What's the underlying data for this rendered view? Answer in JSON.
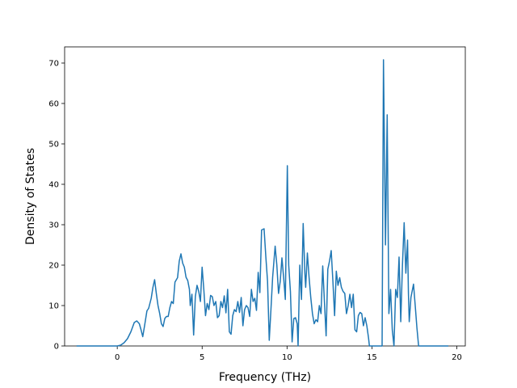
{
  "chart_data": {
    "type": "line",
    "title": "",
    "xlabel": "Frequency (THz)",
    "ylabel": "Density of States",
    "xlim": [
      -3.1,
      20.5
    ],
    "ylim": [
      0,
      74
    ],
    "xticks": [
      0,
      5,
      10,
      15,
      20
    ],
    "yticks": [
      0,
      10,
      20,
      30,
      40,
      50,
      60,
      70
    ],
    "grid": false,
    "legend": "none",
    "series": [
      {
        "color": "#1f77b4",
        "points": [
          [
            -2.4,
            0
          ],
          [
            -1.0,
            0
          ],
          [
            0.0,
            0
          ],
          [
            0.2,
            0.2
          ],
          [
            0.4,
            0.8
          ],
          [
            0.6,
            1.8
          ],
          [
            0.8,
            3.5
          ],
          [
            1.0,
            5.8
          ],
          [
            1.15,
            6.2
          ],
          [
            1.3,
            5.5
          ],
          [
            1.4,
            4.0
          ],
          [
            1.5,
            2.3
          ],
          [
            1.6,
            4.8
          ],
          [
            1.75,
            8.7
          ],
          [
            1.85,
            9.3
          ],
          [
            2.0,
            11.8
          ],
          [
            2.1,
            14.5
          ],
          [
            2.2,
            16.4
          ],
          [
            2.3,
            13.0
          ],
          [
            2.4,
            10.0
          ],
          [
            2.5,
            8.0
          ],
          [
            2.6,
            5.5
          ],
          [
            2.7,
            4.8
          ],
          [
            2.8,
            6.8
          ],
          [
            2.9,
            7.3
          ],
          [
            3.0,
            7.3
          ],
          [
            3.1,
            9.5
          ],
          [
            3.2,
            11.0
          ],
          [
            3.3,
            10.5
          ],
          [
            3.4,
            15.8
          ],
          [
            3.55,
            16.9
          ],
          [
            3.65,
            21.0
          ],
          [
            3.75,
            22.8
          ],
          [
            3.85,
            20.5
          ],
          [
            3.95,
            19.5
          ],
          [
            4.05,
            17.0
          ],
          [
            4.15,
            16.2
          ],
          [
            4.25,
            14.0
          ],
          [
            4.3,
            10.0
          ],
          [
            4.4,
            12.8
          ],
          [
            4.5,
            2.7
          ],
          [
            4.6,
            12.2
          ],
          [
            4.7,
            15.0
          ],
          [
            4.8,
            13.5
          ],
          [
            4.9,
            11.0
          ],
          [
            5.0,
            19.5
          ],
          [
            5.1,
            14.0
          ],
          [
            5.2,
            7.5
          ],
          [
            5.3,
            10.5
          ],
          [
            5.4,
            9.0
          ],
          [
            5.5,
            12.5
          ],
          [
            5.6,
            12.2
          ],
          [
            5.7,
            10.0
          ],
          [
            5.8,
            11.0
          ],
          [
            5.9,
            7.0
          ],
          [
            6.0,
            7.5
          ],
          [
            6.1,
            11.0
          ],
          [
            6.2,
            9.5
          ],
          [
            6.3,
            12.4
          ],
          [
            6.4,
            8.2
          ],
          [
            6.5,
            14.0
          ],
          [
            6.6,
            3.5
          ],
          [
            6.7,
            2.9
          ],
          [
            6.8,
            7.5
          ],
          [
            6.9,
            9.0
          ],
          [
            7.0,
            8.5
          ],
          [
            7.1,
            11.0
          ],
          [
            7.2,
            8.3
          ],
          [
            7.3,
            12.0
          ],
          [
            7.4,
            5.0
          ],
          [
            7.5,
            9.0
          ],
          [
            7.6,
            10.0
          ],
          [
            7.7,
            9.5
          ],
          [
            7.8,
            7.3
          ],
          [
            7.9,
            14.0
          ],
          [
            8.0,
            11.0
          ],
          [
            8.1,
            11.8
          ],
          [
            8.2,
            8.8
          ],
          [
            8.3,
            18.2
          ],
          [
            8.4,
            13.2
          ],
          [
            8.5,
            28.7
          ],
          [
            8.65,
            29.0
          ],
          [
            8.75,
            22.0
          ],
          [
            8.85,
            16.0
          ],
          [
            8.95,
            1.4
          ],
          [
            9.05,
            9.0
          ],
          [
            9.15,
            17.0
          ],
          [
            9.3,
            24.7
          ],
          [
            9.4,
            20.0
          ],
          [
            9.5,
            13.0
          ],
          [
            9.6,
            16.0
          ],
          [
            9.7,
            21.8
          ],
          [
            9.8,
            17.0
          ],
          [
            9.9,
            11.5
          ],
          [
            10.02,
            44.6
          ],
          [
            10.1,
            20.0
          ],
          [
            10.2,
            13.5
          ],
          [
            10.3,
            1.0
          ],
          [
            10.4,
            6.8
          ],
          [
            10.5,
            7.0
          ],
          [
            10.6,
            5.5
          ],
          [
            10.65,
            0
          ],
          [
            10.75,
            20.0
          ],
          [
            10.85,
            11.5
          ],
          [
            10.95,
            30.3
          ],
          [
            11.05,
            18.0
          ],
          [
            11.1,
            14.5
          ],
          [
            11.2,
            23.0
          ],
          [
            11.3,
            17.0
          ],
          [
            11.4,
            12.0
          ],
          [
            11.5,
            8.0
          ],
          [
            11.6,
            5.5
          ],
          [
            11.7,
            6.5
          ],
          [
            11.8,
            6.0
          ],
          [
            11.9,
            10.0
          ],
          [
            12.0,
            8.0
          ],
          [
            12.1,
            19.8
          ],
          [
            12.2,
            11.0
          ],
          [
            12.3,
            2.5
          ],
          [
            12.4,
            19.0
          ],
          [
            12.5,
            21.0
          ],
          [
            12.6,
            23.6
          ],
          [
            12.7,
            16.0
          ],
          [
            12.8,
            7.5
          ],
          [
            12.9,
            18.5
          ],
          [
            13.0,
            15.0
          ],
          [
            13.1,
            16.9
          ],
          [
            13.2,
            14.5
          ],
          [
            13.3,
            13.5
          ],
          [
            13.4,
            13.0
          ],
          [
            13.5,
            8.0
          ],
          [
            13.6,
            10.0
          ],
          [
            13.7,
            12.8
          ],
          [
            13.8,
            9.5
          ],
          [
            13.9,
            12.8
          ],
          [
            14.0,
            4.0
          ],
          [
            14.1,
            3.5
          ],
          [
            14.2,
            7.5
          ],
          [
            14.3,
            8.3
          ],
          [
            14.4,
            8.0
          ],
          [
            14.5,
            5.0
          ],
          [
            14.6,
            7.0
          ],
          [
            14.7,
            5.0
          ],
          [
            14.8,
            2.0
          ],
          [
            14.85,
            0
          ],
          [
            15.1,
            0
          ],
          [
            15.3,
            0
          ],
          [
            15.5,
            0
          ],
          [
            15.6,
            0
          ],
          [
            15.68,
            70.8
          ],
          [
            15.8,
            25.0
          ],
          [
            15.9,
            57.2
          ],
          [
            16.0,
            8.0
          ],
          [
            16.1,
            14.0
          ],
          [
            16.2,
            4.0
          ],
          [
            16.3,
            0
          ],
          [
            16.4,
            14.0
          ],
          [
            16.5,
            12.0
          ],
          [
            16.6,
            22.0
          ],
          [
            16.7,
            6.0
          ],
          [
            16.8,
            20.0
          ],
          [
            16.9,
            30.5
          ],
          [
            17.0,
            18.0
          ],
          [
            17.1,
            26.2
          ],
          [
            17.15,
            13.0
          ],
          [
            17.2,
            6.0
          ],
          [
            17.3,
            12.0
          ],
          [
            17.45,
            15.3
          ],
          [
            17.55,
            10.0
          ],
          [
            17.65,
            4.5
          ],
          [
            17.75,
            0
          ],
          [
            18.5,
            0
          ],
          [
            19.5,
            0
          ]
        ]
      }
    ]
  }
}
